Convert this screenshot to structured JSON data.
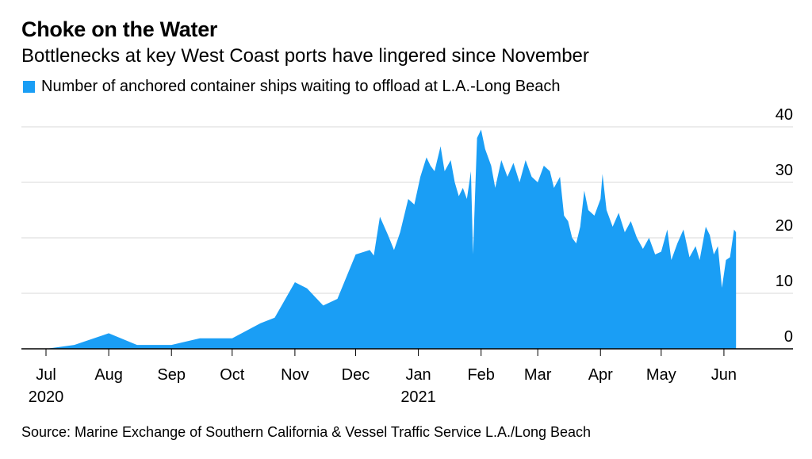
{
  "title": "Choke on the Water",
  "subtitle": "Bottlenecks at key West Coast ports have lingered since November",
  "source": "Source: Marine Exchange of Southern California & Vessel Traffic Service L.A./Long Beach",
  "colors": {
    "area": "#1a9ef5",
    "grid": "#d9d9d9",
    "axis": "#000000"
  },
  "chart_data": {
    "type": "area",
    "title": "Choke on the Water",
    "subtitle": "Bottlenecks at key West Coast ports have lingered since November",
    "legend": "top-left",
    "grid": true,
    "ylim": [
      0,
      40
    ],
    "xlim": [
      "2020-07-01",
      "2021-06-12"
    ],
    "yticks": [
      "0",
      "10",
      "20",
      "30",
      "40"
    ],
    "xticks": [
      {
        "label": "Jul",
        "year": "2020",
        "date": "2020-07-01"
      },
      {
        "label": "Aug",
        "year": "",
        "date": "2020-08-01"
      },
      {
        "label": "Sep",
        "year": "",
        "date": "2020-09-01"
      },
      {
        "label": "Oct",
        "year": "",
        "date": "2020-10-01"
      },
      {
        "label": "Nov",
        "year": "",
        "date": "2020-11-01"
      },
      {
        "label": "Dec",
        "year": "",
        "date": "2020-12-01"
      },
      {
        "label": "Jan",
        "year": "2021",
        "date": "2021-01-01"
      },
      {
        "label": "Feb",
        "year": "",
        "date": "2021-02-01"
      },
      {
        "label": "Mar",
        "year": "",
        "date": "2021-03-01"
      },
      {
        "label": "Apr",
        "year": "",
        "date": "2021-04-01"
      },
      {
        "label": "May",
        "year": "",
        "date": "2021-05-01"
      },
      {
        "label": "Jun",
        "year": "",
        "date": "2021-06-01"
      }
    ],
    "series": [
      {
        "name": "Number of anchored container ships waiting to offload at L.A.-Long Beach",
        "points": [
          [
            "2020-07-01",
            0
          ],
          [
            "2020-07-15",
            0.7
          ],
          [
            "2020-08-01",
            2.8
          ],
          [
            "2020-08-15",
            0.7
          ],
          [
            "2020-09-01",
            0.7
          ],
          [
            "2020-09-15",
            1.9
          ],
          [
            "2020-10-01",
            1.9
          ],
          [
            "2020-10-15",
            4.6
          ],
          [
            "2020-10-22",
            5.6
          ],
          [
            "2020-11-01",
            12
          ],
          [
            "2020-11-07",
            10.9
          ],
          [
            "2020-11-15",
            7.8
          ],
          [
            "2020-11-22",
            9.0
          ],
          [
            "2020-12-01",
            17
          ],
          [
            "2020-12-08",
            17.8
          ],
          [
            "2020-12-10",
            16.8
          ],
          [
            "2020-12-13",
            23.8
          ],
          [
            "2020-12-17",
            20.5
          ],
          [
            "2020-12-20",
            17.8
          ],
          [
            "2020-12-23",
            21
          ],
          [
            "2020-12-27",
            27
          ],
          [
            "2020-12-30",
            26
          ],
          [
            "2021-01-02",
            31
          ],
          [
            "2021-01-05",
            34.5
          ],
          [
            "2021-01-07",
            33
          ],
          [
            "2021-01-09",
            32
          ],
          [
            "2021-01-12",
            36.5
          ],
          [
            "2021-01-14",
            32
          ],
          [
            "2021-01-17",
            34
          ],
          [
            "2021-01-19",
            30
          ],
          [
            "2021-01-21",
            27.5
          ],
          [
            "2021-01-23",
            29
          ],
          [
            "2021-01-25",
            27
          ],
          [
            "2021-01-27",
            32
          ],
          [
            "2021-01-28",
            17
          ],
          [
            "2021-01-30",
            38
          ],
          [
            "2021-02-01",
            39.5
          ],
          [
            "2021-02-03",
            36
          ],
          [
            "2021-02-06",
            33
          ],
          [
            "2021-02-08",
            29
          ],
          [
            "2021-02-11",
            34
          ],
          [
            "2021-02-14",
            31
          ],
          [
            "2021-02-17",
            33.5
          ],
          [
            "2021-02-20",
            30
          ],
          [
            "2021-02-23",
            34
          ],
          [
            "2021-02-26",
            31
          ],
          [
            "2021-03-01",
            30
          ],
          [
            "2021-03-04",
            33
          ],
          [
            "2021-03-07",
            32
          ],
          [
            "2021-03-09",
            29
          ],
          [
            "2021-03-12",
            31
          ],
          [
            "2021-03-14",
            24
          ],
          [
            "2021-03-16",
            23
          ],
          [
            "2021-03-18",
            20
          ],
          [
            "2021-03-20",
            19
          ],
          [
            "2021-03-22",
            22
          ],
          [
            "2021-03-24",
            28.5
          ],
          [
            "2021-03-26",
            25
          ],
          [
            "2021-03-29",
            24
          ],
          [
            "2021-04-01",
            27
          ],
          [
            "2021-04-02",
            31.5
          ],
          [
            "2021-04-04",
            25
          ],
          [
            "2021-04-07",
            22
          ],
          [
            "2021-04-10",
            24.5
          ],
          [
            "2021-04-13",
            21
          ],
          [
            "2021-04-16",
            23
          ],
          [
            "2021-04-19",
            20
          ],
          [
            "2021-04-22",
            18
          ],
          [
            "2021-04-25",
            20
          ],
          [
            "2021-04-28",
            17
          ],
          [
            "2021-05-01",
            17.5
          ],
          [
            "2021-05-04",
            21.5
          ],
          [
            "2021-05-06",
            16
          ],
          [
            "2021-05-09",
            19
          ],
          [
            "2021-05-12",
            21.5
          ],
          [
            "2021-05-15",
            16.5
          ],
          [
            "2021-05-18",
            18.5
          ],
          [
            "2021-05-20",
            16
          ],
          [
            "2021-05-23",
            22
          ],
          [
            "2021-05-25",
            20.5
          ],
          [
            "2021-05-27",
            17
          ],
          [
            "2021-05-29",
            18.5
          ],
          [
            "2021-05-31",
            11
          ],
          [
            "2021-06-02",
            16
          ],
          [
            "2021-06-04",
            16.5
          ],
          [
            "2021-06-06",
            21.5
          ],
          [
            "2021-06-07",
            21
          ]
        ]
      }
    ]
  }
}
